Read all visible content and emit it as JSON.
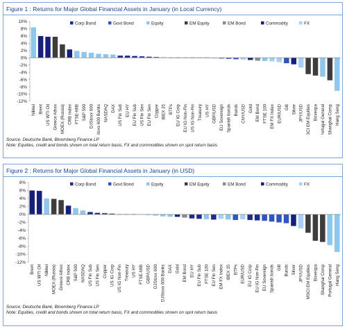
{
  "figures": [
    {
      "title": "Figure 1 : Returns for Major Global Financial Assets in January (in Local Currency)",
      "source": "Source: Deutsche Bank, Bloomberg Finance LP",
      "note": "Note: Equities, credit and bonds shown on total return basis, FX and commodities shown on spot return basis"
    },
    {
      "title": "Figure 2 : Returns for Major Global Financial Assets in January (in USD)",
      "source": "Source: Deutsche Bank, Bloomberg Finance LP",
      "note": "Note: Equities, credit and bonds shown on total return basis, FX and commodities shown on spot return basis"
    }
  ],
  "legend": [
    {
      "name": "Corp Bond",
      "color": "#1f2b8c"
    },
    {
      "name": "Govt Bond",
      "color": "#2f55c0"
    },
    {
      "name": "Equity",
      "color": "#8ec7ee"
    },
    {
      "name": "EM Equity",
      "color": "#3d3d3d"
    },
    {
      "name": "EM Bond",
      "color": "#8a8a8a"
    },
    {
      "name": "Commodity",
      "color": "#16207a"
    },
    {
      "name": "FX",
      "color": "#a9cff2"
    }
  ],
  "chart_data": [
    {
      "type": "bar",
      "ylim": [
        -12,
        10
      ],
      "yticks": [
        10,
        8,
        6,
        4,
        2,
        0,
        -2,
        -4,
        -6,
        -8,
        -10,
        -12
      ],
      "ytick_format": "percent",
      "legend_position": "top",
      "grid": false,
      "categories": [
        "Nikkei",
        "Brent",
        "US WTI Oil",
        "Greece Athex",
        "MOEX (Russia)",
        "CRB Index",
        "FTSE-MIB",
        "S&P 500",
        "DJStoxx 600",
        "DJStoxx 600 Banks",
        "NASDAQ",
        "DAX",
        "US Fin Sub",
        "EU HY",
        "EU Fin Sub",
        "US Fin Sen",
        "EU Fin Sen",
        "Copper",
        "IBEX 35",
        "BTPs",
        "EU IG Corp",
        "EU IG Non-Fin",
        "US IG Non-Fin",
        "Treasury",
        "US HY",
        "GBP/USD",
        "EU Sovereign",
        "Spanish bonds",
        "Bunds",
        "CNY/USD",
        "Gold",
        "EM Bond",
        "FTSE 100",
        "EM FX Index",
        "EUR/USD",
        "Gilt",
        "Silver",
        "JPY/USD",
        "MSCI EM Equities",
        "Bovespa",
        "Portugal General",
        "Shanghai Comp",
        "Hang Seng"
      ],
      "groups": [
        "Equity",
        "Commodity",
        "Commodity",
        "EM Equity",
        "EM Equity",
        "Commodity",
        "Equity",
        "Equity",
        "Equity",
        "Equity",
        "Equity",
        "Equity",
        "Corp Bond",
        "Corp Bond",
        "Corp Bond",
        "Corp Bond",
        "Corp Bond",
        "Commodity",
        "Equity",
        "Govt Bond",
        "Corp Bond",
        "Corp Bond",
        "Corp Bond",
        "Govt Bond",
        "Corp Bond",
        "FX",
        "Govt Bond",
        "Govt Bond",
        "Govt Bond",
        "FX",
        "Commodity",
        "EM Bond",
        "Equity",
        "FX",
        "FX",
        "Govt Bond",
        "Commodity",
        "FX",
        "EM Equity",
        "EM Equity",
        "Equity",
        "EM Equity",
        "Equity"
      ],
      "values": [
        8.4,
        6.0,
        5.8,
        5.8,
        3.7,
        2.3,
        1.9,
        1.6,
        1.4,
        1.1,
        1.0,
        0.9,
        0.6,
        0.6,
        0.5,
        0.4,
        0.3,
        0.2,
        0.2,
        0.1,
        0.1,
        0.1,
        0.0,
        0.0,
        -0.1,
        -0.2,
        -0.2,
        -0.3,
        -0.4,
        -0.5,
        -0.6,
        -0.8,
        -0.9,
        -1.0,
        -1.2,
        -1.5,
        -1.8,
        -2.7,
        -4.5,
        -4.9,
        -5.2,
        -6.2,
        -9.1
      ]
    },
    {
      "type": "bar",
      "ylim": [
        -12,
        8
      ],
      "yticks": [
        8,
        6,
        4,
        2,
        0,
        -2,
        -4,
        -6,
        -8,
        -10,
        -12
      ],
      "ytick_format": "percent",
      "legend_position": "top",
      "grid": false,
      "categories": [
        "Brent",
        "US WTI Oil",
        "Nikkei",
        "MOEX (Russia)",
        "Greece Athex",
        "CRB Index",
        "S&P 500",
        "NASDAQ",
        "US Fin Sub",
        "US Fin Sen",
        "Copper",
        "US IG Corp",
        "US IG Non-Fin",
        "Treasury",
        "US HY",
        "FTSE-MIB",
        "GBP/USD",
        "DJStoxx 600",
        "DJStoxx 600 Banks",
        "DAX",
        "Gold",
        "EM Bond",
        "EU HY",
        "EU Fin Sub",
        "FTSE 100",
        "EU Fin Sen",
        "EM FX Index",
        "IBEX 35",
        "BTPs",
        "EUR/USD",
        "EU IG Corp",
        "EU IG Non-Fin",
        "EU Sovereign",
        "Spanish bonds",
        "Gilt",
        "Bunds",
        "Silver",
        "JPY/USD",
        "MSCI EM Equities",
        "Bovespa",
        "Shanghai Comp",
        "Portugal General",
        "Hang Seng"
      ],
      "groups": [
        "Commodity",
        "Commodity",
        "Equity",
        "EM Equity",
        "EM Equity",
        "Commodity",
        "Equity",
        "Equity",
        "Corp Bond",
        "Corp Bond",
        "Commodity",
        "Corp Bond",
        "Corp Bond",
        "Govt Bond",
        "Corp Bond",
        "Equity",
        "FX",
        "Equity",
        "Equity",
        "Equity",
        "Commodity",
        "EM Bond",
        "Corp Bond",
        "Corp Bond",
        "Equity",
        "Corp Bond",
        "FX",
        "Equity",
        "Govt Bond",
        "FX",
        "Corp Bond",
        "Corp Bond",
        "Govt Bond",
        "Govt Bond",
        "Govt Bond",
        "Govt Bond",
        "Commodity",
        "FX",
        "EM Equity",
        "EM Equity",
        "EM Equity",
        "Equity",
        "Equity"
      ],
      "values": [
        6.0,
        5.9,
        4.0,
        3.9,
        3.6,
        2.2,
        1.6,
        1.0,
        0.6,
        0.4,
        0.3,
        0.2,
        0.1,
        0.0,
        -0.1,
        -0.1,
        -0.2,
        -0.3,
        -0.5,
        -0.6,
        -0.6,
        -0.8,
        -1.0,
        -1.1,
        -1.2,
        -1.3,
        -1.1,
        -1.3,
        -1.4,
        -1.2,
        -1.4,
        -1.5,
        -1.6,
        -1.8,
        -2.0,
        -2.2,
        -2.9,
        -3.5,
        -4.6,
        -6.6,
        -6.9,
        -7.7,
        -9.4
      ]
    }
  ]
}
